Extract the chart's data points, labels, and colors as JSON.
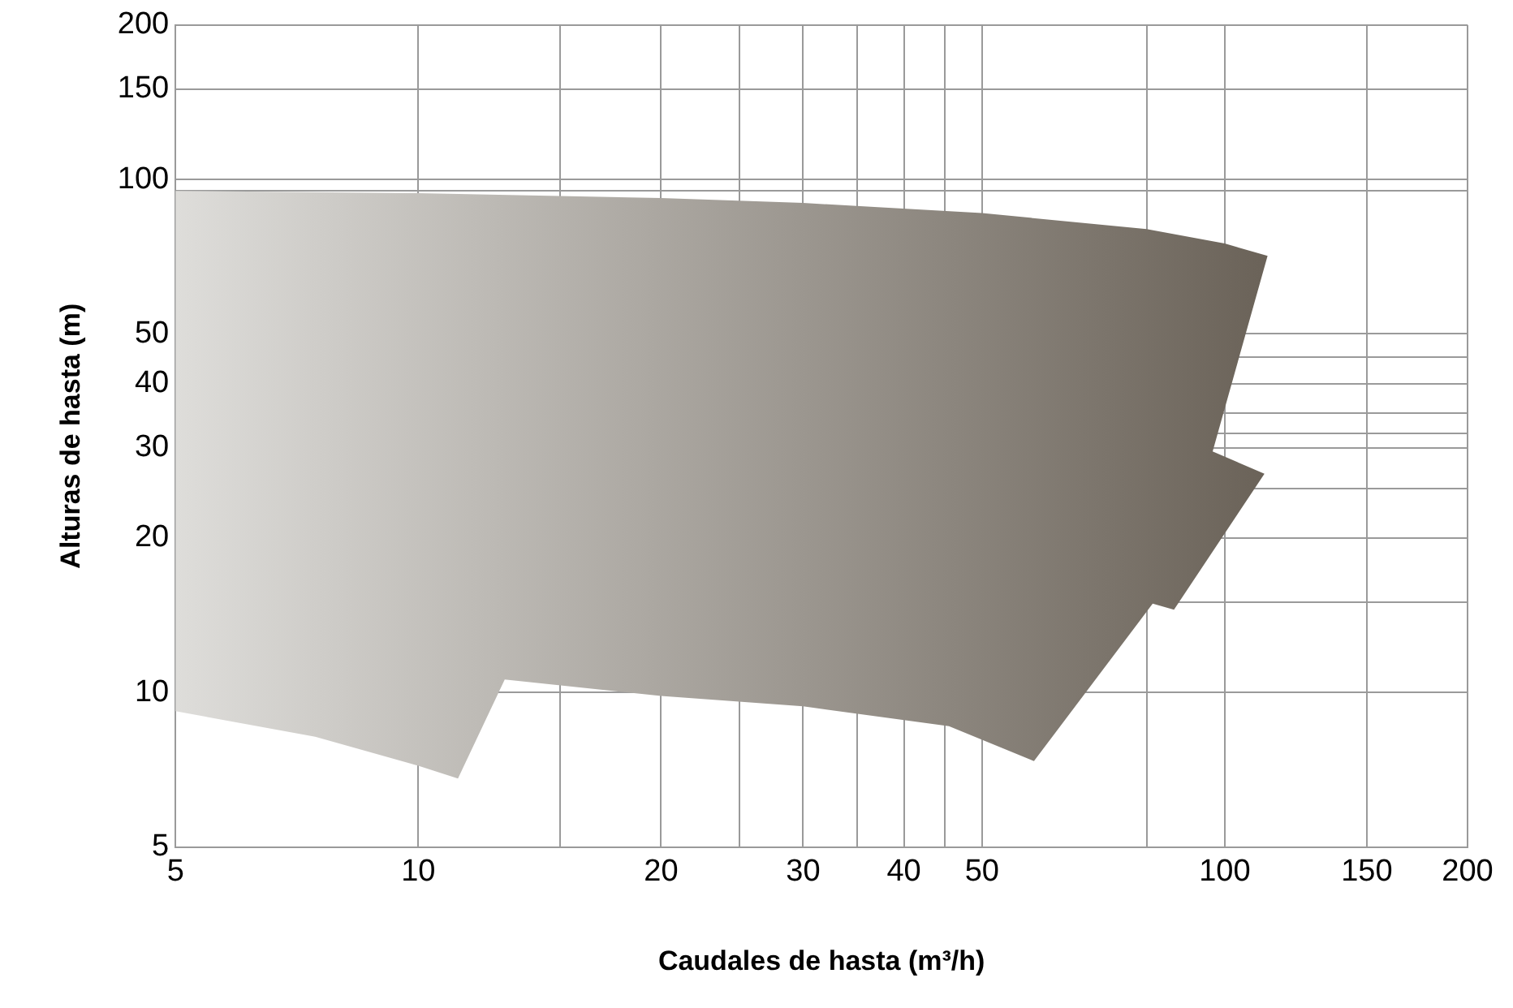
{
  "chart_data": {
    "type": "area",
    "xlabel": "Caudales de hasta (m³/h)",
    "ylabel": "Alturas de hasta (m)",
    "log": "xy",
    "grid": true,
    "xlim": [
      5,
      200
    ],
    "ylim": [
      5,
      200
    ],
    "xticks": [
      5,
      10,
      {
        "value": 15,
        "label": null
      },
      20,
      {
        "value": 25,
        "label": null
      },
      30,
      {
        "value": 35,
        "label": null
      },
      40,
      {
        "value": 45,
        "label": null
      },
      50,
      {
        "value": 80,
        "label": null
      },
      100,
      150,
      200
    ],
    "yticks": [
      5,
      10,
      {
        "value": 15,
        "label": null
      },
      20,
      {
        "value": 25,
        "label": null
      },
      30,
      {
        "value": 32,
        "label": null
      },
      {
        "value": 35,
        "label": null
      },
      40,
      {
        "value": 45,
        "label": null
      },
      50,
      {
        "value": 95,
        "label": null
      },
      100,
      150,
      200
    ],
    "series": [
      {
        "color": "#6b6359",
        "x": [
          5,
          10,
          20,
          30,
          50,
          80,
          100,
          113,
          96.6,
          112,
          86.5,
          81.4,
          58,
          45.5,
          30,
          20,
          12.8,
          11.2,
          10,
          7.45,
          5,
          5
        ],
        "values": [
          95,
          94,
          92,
          90,
          86,
          80,
          75,
          71,
          29.5,
          26.7,
          14.5,
          14.9,
          7.35,
          8.6,
          9.4,
          9.85,
          10.6,
          6.8,
          7.2,
          8.2,
          9.2,
          95
        ]
      }
    ]
  }
}
